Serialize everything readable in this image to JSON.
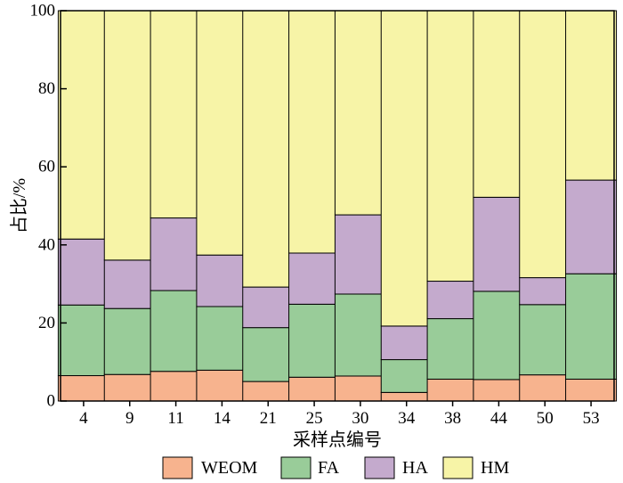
{
  "chart_data": {
    "type": "bar",
    "stacked": true,
    "categories": [
      "4",
      "9",
      "11",
      "14",
      "21",
      "25",
      "30",
      "34",
      "38",
      "44",
      "50",
      "53"
    ],
    "series": [
      {
        "name": "WEOM",
        "color": "#f7b38e",
        "values": [
          6.5,
          6.8,
          7.6,
          7.9,
          5.0,
          6.1,
          6.4,
          2.2,
          5.6,
          5.5,
          6.7,
          5.6
        ]
      },
      {
        "name": "FA",
        "color": "#99cc99",
        "values": [
          18.1,
          16.9,
          20.7,
          16.3,
          13.8,
          18.7,
          21.0,
          8.4,
          15.5,
          22.6,
          18.0,
          27.0
        ]
      },
      {
        "name": "HA",
        "color": "#c4aacd",
        "values": [
          16.9,
          12.4,
          18.6,
          13.2,
          10.4,
          13.1,
          20.3,
          8.6,
          9.6,
          24.1,
          6.9,
          24.0
        ]
      },
      {
        "name": "HM",
        "color": "#f7f4a7",
        "values": [
          58.5,
          63.9,
          53.1,
          62.6,
          70.8,
          62.1,
          52.3,
          80.8,
          69.3,
          47.8,
          68.4,
          43.4
        ]
      }
    ],
    "title": "",
    "xlabel": "采样点编号",
    "ylabel": "占比/%",
    "ylim": [
      0,
      100
    ],
    "yticks": [
      0,
      20,
      40,
      60,
      80,
      100
    ],
    "grid": false,
    "legend_position": "bottom"
  }
}
